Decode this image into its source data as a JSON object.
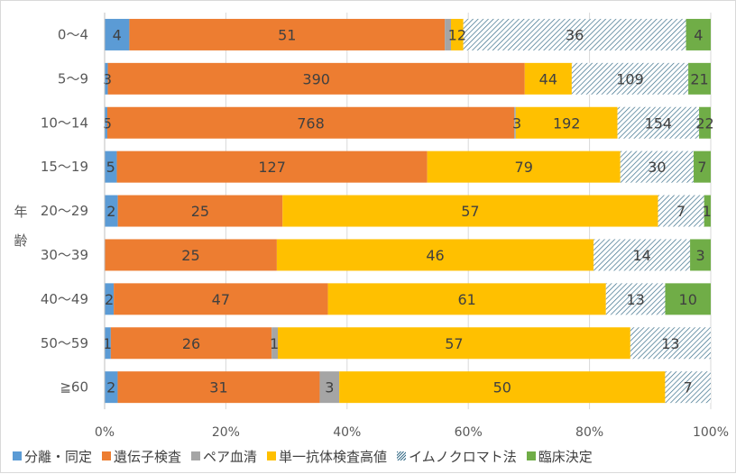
{
  "chart_data": {
    "type": "bar",
    "orientation": "horizontal",
    "stacked": "percent",
    "ylabel": "年齢",
    "categories": [
      "0～4",
      "5～9",
      "10～14",
      "15～19",
      "20～29",
      "30～39",
      "40～49",
      "50～59",
      "≧60"
    ],
    "series": [
      {
        "name": "分離・同定",
        "color": "#5b9bd5",
        "values": [
          4,
          3,
          5,
          5,
          2,
          0,
          2,
          1,
          2
        ]
      },
      {
        "name": "遺伝子検査",
        "color": "#ed7d31",
        "values": [
          51,
          390,
          768,
          127,
          25,
          25,
          47,
          26,
          31
        ]
      },
      {
        "name": "ペア血清",
        "color": "#a5a5a5",
        "values": [
          1,
          0,
          3,
          0,
          0,
          0,
          0,
          1,
          3
        ]
      },
      {
        "name": "単一抗体検査高値",
        "color": "#ffc000",
        "values": [
          2,
          44,
          192,
          79,
          57,
          46,
          61,
          57,
          50
        ]
      },
      {
        "name": "イムノクロマト法",
        "color": "#3a6f8a",
        "pattern": "hatch",
        "values": [
          36,
          109,
          154,
          30,
          7,
          14,
          13,
          13,
          7
        ]
      },
      {
        "name": "臨床決定",
        "color": "#70ad47",
        "values": [
          4,
          21,
          22,
          7,
          1,
          3,
          10,
          0,
          0
        ]
      }
    ],
    "data_labels": [
      [
        "4",
        "51",
        "",
        "",
        "36",
        "4"
      ],
      [
        "3",
        "390",
        "",
        "44",
        "109",
        "21"
      ],
      [
        "5",
        "768",
        "3",
        "192",
        "154",
        "22"
      ],
      [
        "5",
        "127",
        "",
        "79",
        "30",
        "7"
      ],
      [
        "2",
        "25",
        "",
        "57",
        "7",
        "1"
      ],
      [
        "",
        "25",
        "",
        "46",
        "14",
        "3"
      ],
      [
        "2",
        "47",
        "",
        "61",
        "13",
        "10"
      ],
      [
        "1",
        "26",
        "1",
        "57",
        "13",
        ""
      ],
      [
        "2",
        "31",
        "3",
        "50",
        "7",
        ""
      ]
    ],
    "label_12_row0": "12",
    "x_ticks": [
      "0%",
      "20%",
      "40%",
      "60%",
      "80%",
      "100%"
    ],
    "xlim": [
      0,
      100
    ],
    "grid": true,
    "legend_position": "bottom"
  }
}
